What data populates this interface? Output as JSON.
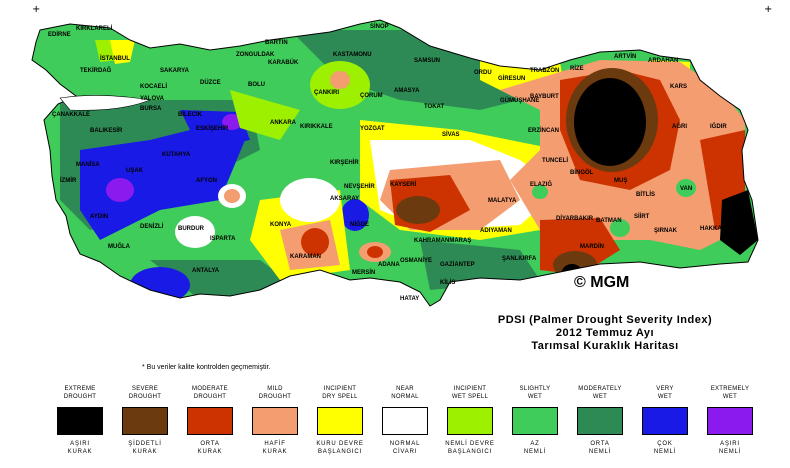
{
  "corner_marks": {
    "left": "+",
    "right": "+"
  },
  "copyright": "© MGM",
  "title_lines": [
    "PDSI (Palmer Drought Severity Index)",
    "2012 Temmuz Ayı",
    "Tarımsal Kuraklık Haritası"
  ],
  "note": "* Bu veriler kalite kontrolden geçmemiştir.",
  "colors": {
    "extreme_drought": "#000000",
    "severe_drought": "#6b3a0e",
    "moderate_drought": "#cc3300",
    "mild_drought": "#f49d70",
    "incipient_dry": "#ffff00",
    "near_normal": "#ffffff",
    "incipient_wet": "#9cf000",
    "slightly_wet": "#40cc5a",
    "moderately_wet": "#2e8a55",
    "very_wet": "#1a1ae6",
    "extremely_wet": "#8a1aee",
    "sea_gray": "#d9d9d9"
  },
  "legend": [
    {
      "top": "EXTREME\nDROUGHT",
      "bottom": "AŞIRI\nKURAK",
      "color": "#000000"
    },
    {
      "top": "SEVERE\nDROUGHT",
      "bottom": "ŞİDDETLİ\nKURAK",
      "color": "#6b3a0e"
    },
    {
      "top": "MODERATE\nDROUGHT",
      "bottom": "ORTA\nKURAK",
      "color": "#cc3300"
    },
    {
      "top": "MILD\nDROUGHT",
      "bottom": "HAFİF\nKURAK",
      "color": "#f49d70"
    },
    {
      "top": "INCIPIENT\nDRY SPELL",
      "bottom": "KURU DEVRE\nBAŞLANGICI",
      "color": "#ffff00"
    },
    {
      "top": "NEAR\nNORMAL",
      "bottom": "NORMAL\nCİVARI",
      "color": "#ffffff"
    },
    {
      "top": "INCIPIENT\nWET SPELL",
      "bottom": "NEMLİ DEVRE\nBAŞLANGICI",
      "color": "#9cf000"
    },
    {
      "top": "SLIGHTLY\nWET",
      "bottom": "AZ\nNEMLİ",
      "color": "#40cc5a"
    },
    {
      "top": "MODERATELY\nWET",
      "bottom": "ORTA\nNEMLİ",
      "color": "#2e8a55"
    },
    {
      "top": "VERY\nWET",
      "bottom": "ÇOK\nNEMLİ",
      "color": "#1a1ae6"
    },
    {
      "top": "EXTREMELY\nWET",
      "bottom": "AŞIRI\nNEMLİ",
      "color": "#8a1aee"
    }
  ],
  "cities": [
    "SİNOP",
    "KASTAMONU",
    "BARTIN",
    "ZONGULDAK",
    "KARABÜK",
    "ÇANKIRI",
    "ÇORUM",
    "AMASYA",
    "TOKAT",
    "SAMSUN",
    "ORDU",
    "GİRESUN",
    "TRABZON",
    "RİZE",
    "ARTVİN",
    "ARDAHAN",
    "KARS",
    "IĞDIR",
    "AĞRI",
    "ERZURUM",
    "BAYBURT",
    "GÜMÜŞHANE",
    "ERZİNCAN",
    "SİVAS",
    "YOZGAT",
    "KIRIKKALE",
    "ANKARA",
    "BOLU",
    "DÜZCE",
    "SAKARYA",
    "KOCAELİ",
    "YALOVA",
    "BURSA",
    "İSTANBUL",
    "EDİRNE",
    "KIRKLARELİ",
    "TEKİRDAĞ",
    "ÇANAKKALE",
    "BALIKESİR",
    "BİLECİK",
    "ESKİŞEHİR",
    "KÜTAHYA",
    "MANİSA",
    "İZMİR",
    "UŞAK",
    "AFYON",
    "AYDIN",
    "DENİZLİ",
    "MUĞLA",
    "BURDUR",
    "ISPARTA",
    "ANTALYA",
    "KONYA",
    "KARAMAN",
    "MERSİN",
    "ADANA",
    "OSMANİYE",
    "HATAY",
    "KİLİS",
    "GAZİANTEP",
    "ŞANLIURFA",
    "ADIYAMAN",
    "MALATYA",
    "KAHRAMANMARAŞ",
    "NİĞDE",
    "NEVŞEHİR",
    "KIRŞEHİR",
    "AKSARAY",
    "KAYSERİ",
    "TUNCELİ",
    "ELAZIĞ",
    "BİNGÖL",
    "MUŞ",
    "BİTLİS",
    "VAN",
    "HAKKARİ",
    "ŞIRNAK",
    "SİİRT",
    "BATMAN",
    "MARDİN",
    "DİYARBAKIR"
  ]
}
